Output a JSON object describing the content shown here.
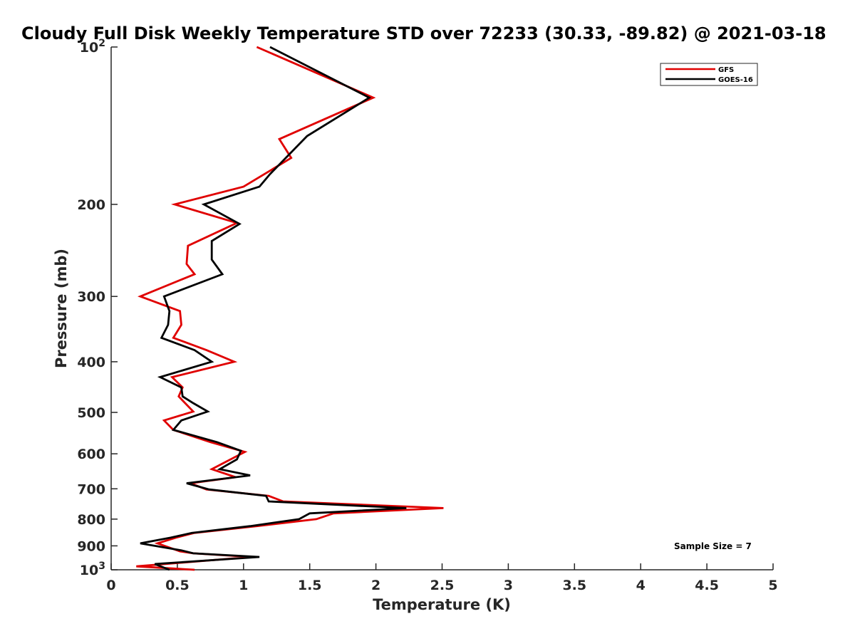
{
  "chart_data": {
    "type": "line",
    "title": "Cloudy Full Disk Weekly Temperature STD over 72233 (30.33, -89.82) @ 2021-03-18",
    "xlabel": "Temperature (K)",
    "ylabel": "Pressure (mb)",
    "xlim": [
      0,
      5
    ],
    "ylim": [
      100,
      1000
    ],
    "yscale": "log",
    "y_reversed": true,
    "xticks": [
      0,
      0.5,
      1,
      1.5,
      2,
      2.5,
      3,
      3.5,
      4,
      4.5,
      5
    ],
    "xtick_labels": [
      "0",
      "0.5",
      "1",
      "1.5",
      "2",
      "2.5",
      "3",
      "3.5",
      "4",
      "4.5",
      "5"
    ],
    "yticks": [
      100,
      200,
      300,
      400,
      500,
      600,
      700,
      800,
      900,
      1000
    ],
    "ytick_labels": [
      {
        "base": "10",
        "exp": "2"
      },
      {
        "text": "200"
      },
      {
        "text": "300"
      },
      {
        "text": "400"
      },
      {
        "text": "500"
      },
      {
        "text": "600"
      },
      {
        "text": "700"
      },
      {
        "text": "800"
      },
      {
        "text": "900"
      },
      {
        "base": "10",
        "exp": "3"
      }
    ],
    "legend_position": "top-right",
    "annotation": "Sample Size = 7",
    "series": [
      {
        "name": "GFS",
        "color": "#e00000",
        "points": [
          [
            1.1,
            100
          ],
          [
            1.98,
            125
          ],
          [
            1.27,
            150
          ],
          [
            1.36,
            163
          ],
          [
            1.0,
            185
          ],
          [
            0.48,
            200
          ],
          [
            0.95,
            217
          ],
          [
            0.58,
            240
          ],
          [
            0.57,
            260
          ],
          [
            0.63,
            272
          ],
          [
            0.22,
            300
          ],
          [
            0.52,
            320
          ],
          [
            0.53,
            340
          ],
          [
            0.47,
            360
          ],
          [
            0.72,
            380
          ],
          [
            0.93,
            400
          ],
          [
            0.46,
            428
          ],
          [
            0.54,
            448
          ],
          [
            0.51,
            466
          ],
          [
            0.62,
            498
          ],
          [
            0.4,
            518
          ],
          [
            0.47,
            540
          ],
          [
            0.75,
            570
          ],
          [
            1.01,
            595
          ],
          [
            0.76,
            642
          ],
          [
            0.94,
            665
          ],
          [
            0.6,
            683
          ],
          [
            0.72,
            702
          ],
          [
            1.19,
            722
          ],
          [
            1.3,
            740
          ],
          [
            2.51,
            762
          ],
          [
            1.68,
            780
          ],
          [
            1.55,
            800
          ],
          [
            1.1,
            825
          ],
          [
            0.63,
            850
          ],
          [
            0.49,
            868
          ],
          [
            0.35,
            890
          ],
          [
            0.52,
            922
          ],
          [
            0.62,
            930
          ],
          [
            1.06,
            945
          ],
          [
            0.19,
            985
          ],
          [
            0.63,
            1000
          ]
        ]
      },
      {
        "name": "GOES-16",
        "color": "#000000",
        "points": [
          [
            1.2,
            100
          ],
          [
            1.95,
            125
          ],
          [
            1.48,
            148
          ],
          [
            1.2,
            175
          ],
          [
            1.12,
            185
          ],
          [
            0.7,
            200
          ],
          [
            0.97,
            218
          ],
          [
            0.76,
            235
          ],
          [
            0.76,
            255
          ],
          [
            0.84,
            272
          ],
          [
            0.4,
            300
          ],
          [
            0.44,
            320
          ],
          [
            0.43,
            340
          ],
          [
            0.38,
            360
          ],
          [
            0.63,
            380
          ],
          [
            0.76,
            400
          ],
          [
            0.37,
            428
          ],
          [
            0.53,
            448
          ],
          [
            0.54,
            466
          ],
          [
            0.62,
            480
          ],
          [
            0.73,
            498
          ],
          [
            0.53,
            518
          ],
          [
            0.47,
            540
          ],
          [
            0.8,
            570
          ],
          [
            0.98,
            592
          ],
          [
            0.95,
            615
          ],
          [
            0.82,
            642
          ],
          [
            1.05,
            660
          ],
          [
            0.57,
            683
          ],
          [
            0.74,
            702
          ],
          [
            1.17,
            722
          ],
          [
            1.19,
            740
          ],
          [
            2.23,
            762
          ],
          [
            1.5,
            780
          ],
          [
            1.42,
            800
          ],
          [
            1.05,
            825
          ],
          [
            0.61,
            850
          ],
          [
            0.45,
            868
          ],
          [
            0.22,
            890
          ],
          [
            0.53,
            918
          ],
          [
            0.62,
            930
          ],
          [
            1.12,
            945
          ],
          [
            0.33,
            975
          ],
          [
            0.44,
            1000
          ]
        ]
      }
    ]
  }
}
